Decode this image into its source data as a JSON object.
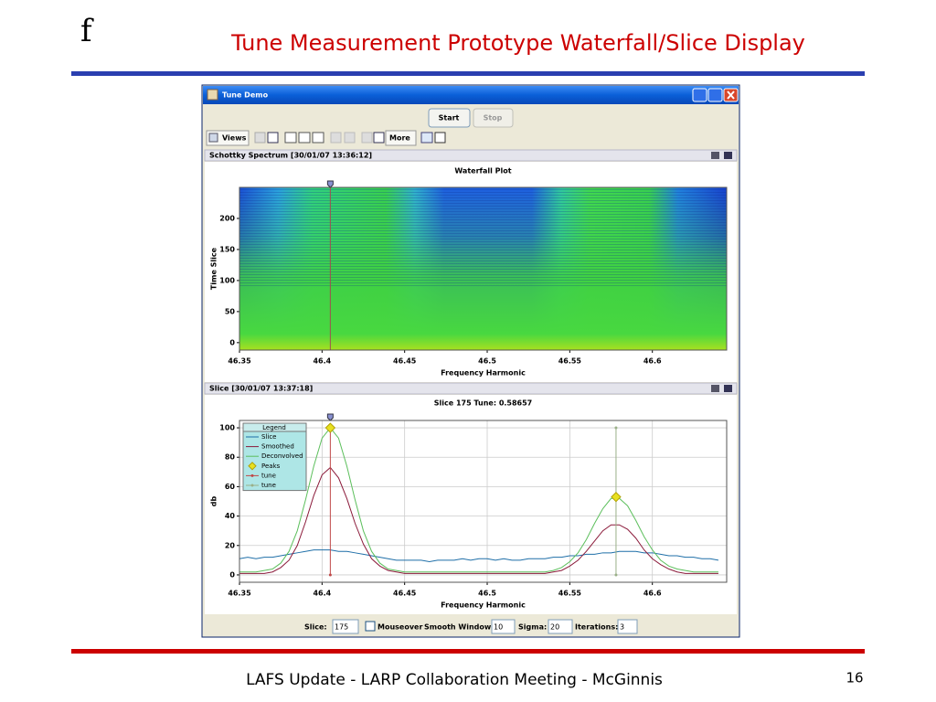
{
  "slide": {
    "logo": "f",
    "title": "Tune Measurement Prototype Waterfall/Slice Display",
    "footer": "LAFS Update - LARP Collaboration Meeting - McGinnis",
    "page_number": "16"
  },
  "window": {
    "title": "Tune Demo",
    "buttons": [
      "Start",
      "Stop"
    ],
    "toolbar": [
      "Views",
      "More"
    ],
    "panels": [
      {
        "header": "Schottky Spectrum  [30/01/07 13:36:12]"
      },
      {
        "header": "Slice  [30/01/07 13:37:18]"
      }
    ],
    "controls": [
      {
        "label": "Slice:",
        "value": "175"
      },
      {
        "label": "Mouseover"
      },
      {
        "label": "Smooth Window",
        "value": "10"
      },
      {
        "label": "Sigma:",
        "value": "20"
      },
      {
        "label": "Iterations:",
        "value": "3"
      }
    ]
  },
  "chart_data": [
    {
      "type": "heatmap",
      "title": "Waterfall Plot",
      "x_label": "Frequency Harmonic",
      "y_label": "Time Slice",
      "xlim": [
        46.35,
        46.645
      ],
      "ylim": [
        -12,
        250
      ],
      "xticks": [
        46.35,
        46.4,
        46.45,
        46.5,
        46.55,
        46.6
      ],
      "yticks": [
        0,
        50,
        100,
        150,
        200
      ],
      "marker_x": 46.405
    },
    {
      "type": "line",
      "title": "Slice 175  Tune:  0.58657",
      "x_label": "Frequency Harmonic",
      "y_label": "db",
      "legend_title": "Legend",
      "legend": "upper left",
      "grid": true,
      "xlim": [
        46.35,
        46.645
      ],
      "ylim": [
        -5,
        105
      ],
      "xticks": [
        46.35,
        46.4,
        46.45,
        46.5,
        46.55,
        46.6
      ],
      "yticks": [
        0,
        20,
        40,
        60,
        80,
        100
      ],
      "x": [
        46.35,
        46.355,
        46.36,
        46.365,
        46.37,
        46.375,
        46.38,
        46.385,
        46.39,
        46.395,
        46.4,
        46.405,
        46.41,
        46.415,
        46.42,
        46.425,
        46.43,
        46.435,
        46.44,
        46.445,
        46.45,
        46.455,
        46.46,
        46.465,
        46.47,
        46.475,
        46.48,
        46.485,
        46.49,
        46.495,
        46.5,
        46.505,
        46.51,
        46.515,
        46.52,
        46.525,
        46.53,
        46.535,
        46.54,
        46.545,
        46.55,
        46.555,
        46.56,
        46.565,
        46.57,
        46.575,
        46.58,
        46.585,
        46.59,
        46.595,
        46.6,
        46.605,
        46.61,
        46.615,
        46.62,
        46.625,
        46.63,
        46.635,
        46.64
      ],
      "series": [
        {
          "name": "Slice",
          "color": "#1f6fa8",
          "values": [
            11,
            12,
            11,
            12,
            12,
            13,
            14,
            15,
            16,
            17,
            17,
            17,
            16,
            16,
            15,
            14,
            13,
            12,
            11,
            10,
            10,
            10,
            10,
            9,
            10,
            10,
            10,
            11,
            10,
            11,
            11,
            10,
            11,
            10,
            10,
            11,
            11,
            11,
            12,
            12,
            13,
            13,
            14,
            14,
            15,
            15,
            16,
            16,
            16,
            15,
            15,
            14,
            13,
            13,
            12,
            12,
            11,
            11,
            10
          ]
        },
        {
          "name": "Smoothed",
          "color": "#8b1a3a",
          "values": [
            1,
            1,
            1,
            1,
            2,
            5,
            10,
            20,
            36,
            54,
            68,
            73,
            66,
            52,
            35,
            21,
            11,
            6,
            3,
            2,
            1,
            1,
            1,
            1,
            1,
            1,
            1,
            1,
            1,
            1,
            1,
            1,
            1,
            1,
            1,
            1,
            1,
            1,
            2,
            3,
            6,
            10,
            16,
            23,
            30,
            34,
            34,
            31,
            25,
            17,
            11,
            7,
            4,
            2,
            1,
            1,
            1,
            1,
            1
          ]
        },
        {
          "name": "Deconvolved",
          "color": "#5cbf5c",
          "values": [
            2,
            2,
            2,
            3,
            4,
            8,
            16,
            30,
            51,
            74,
            93,
            100,
            93,
            74,
            51,
            30,
            16,
            8,
            4,
            3,
            2,
            2,
            2,
            2,
            2,
            2,
            2,
            2,
            2,
            2,
            2,
            2,
            2,
            2,
            2,
            2,
            2,
            2,
            3,
            5,
            9,
            15,
            24,
            35,
            45,
            52,
            52,
            47,
            37,
            26,
            17,
            10,
            6,
            4,
            3,
            2,
            2,
            2,
            2
          ]
        }
      ],
      "peaks": {
        "name": "Peaks",
        "color": "#e8e020",
        "x": [
          46.405,
          46.578
        ],
        "values": [
          100,
          53
        ]
      },
      "markers": [
        {
          "name": "tune",
          "color": "#c04848",
          "x": 46.405
        },
        {
          "name": "tune",
          "color": "#9ab088",
          "x": 46.578
        }
      ]
    }
  ]
}
